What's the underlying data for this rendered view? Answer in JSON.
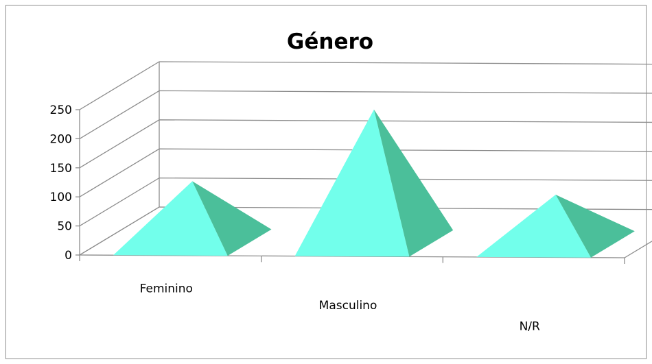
{
  "chart_data": {
    "type": "bar",
    "bar_shape": "pyramid-3d",
    "title": "Género",
    "categories": [
      "Feminino",
      "Masculino",
      "N/R"
    ],
    "values": [
      105,
      230,
      85
    ],
    "ylim": [
      0,
      250
    ],
    "yticks": [
      "0",
      "50",
      "100",
      "150",
      "200",
      "250"
    ],
    "xlabel": "",
    "ylabel": "",
    "grid": true,
    "legend": "none",
    "colors": {
      "front_face": "#72FFEB",
      "side_face": "#4BBF9A",
      "gridline": "#8C8C8C",
      "frame": "#8C8C8C"
    }
  }
}
